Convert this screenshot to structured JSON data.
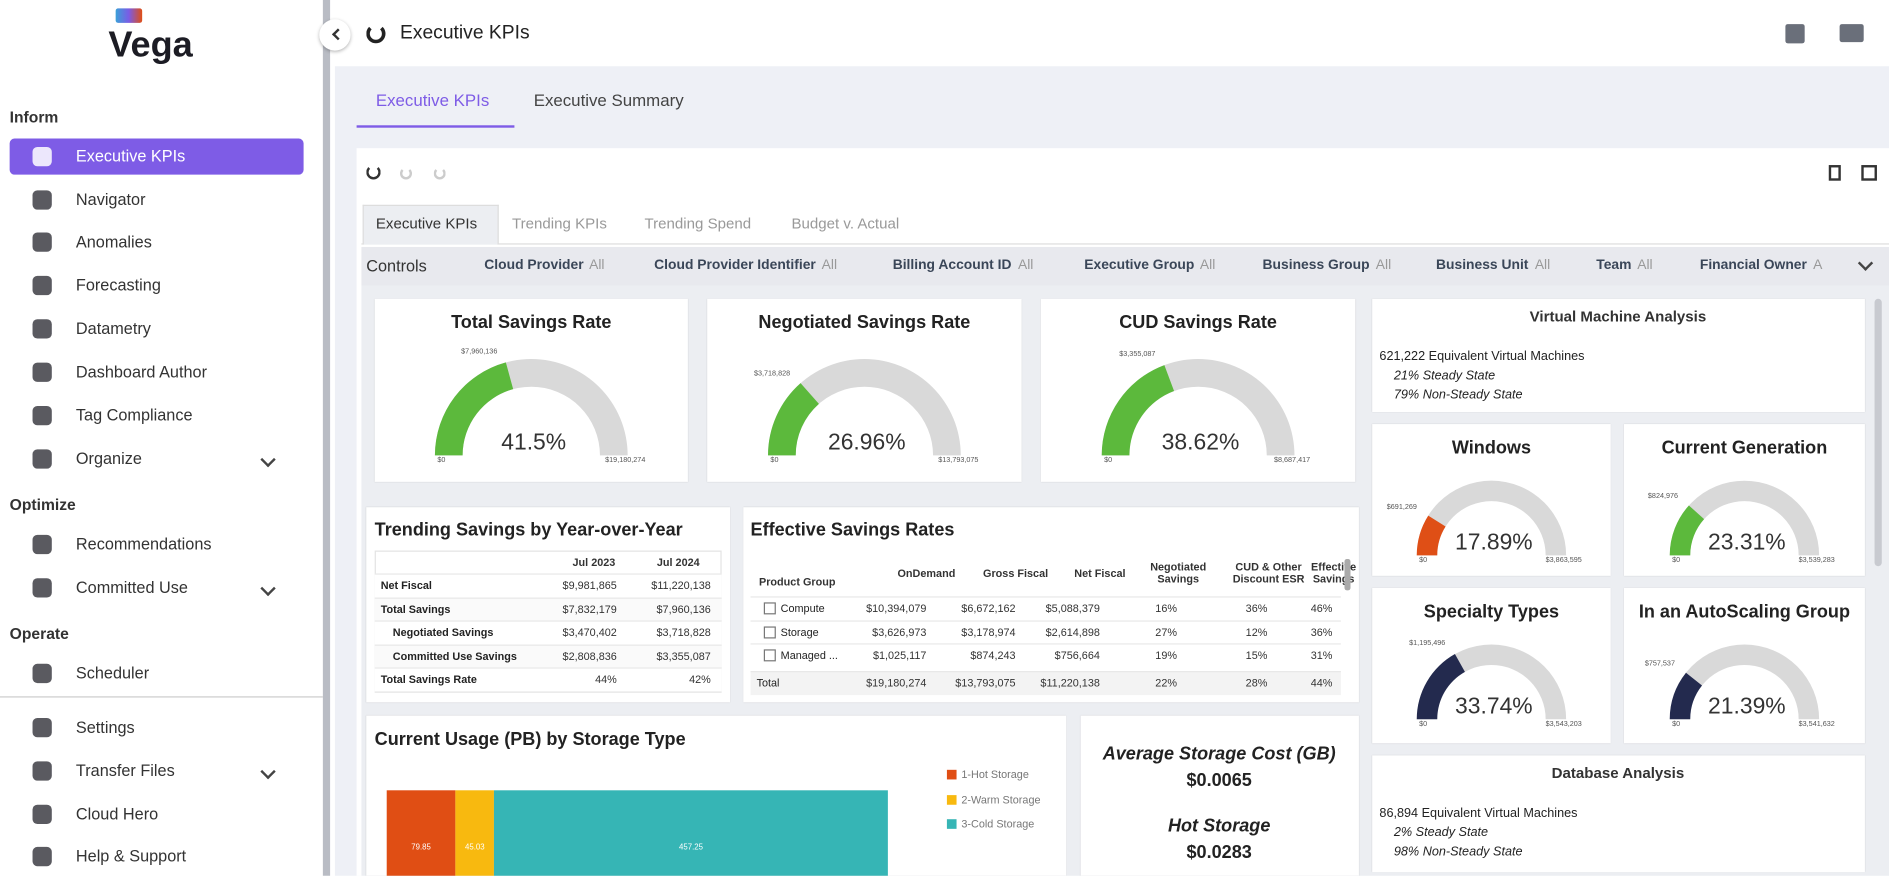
{
  "sidebar": {
    "logo": "Vega",
    "sections": [
      {
        "title": "Inform",
        "items": [
          "Executive KPIs",
          "Navigator",
          "Anomalies",
          "Forecasting",
          "Datametry",
          "Dashboard Author",
          "Tag Compliance",
          "Organize"
        ]
      },
      {
        "title": "Optimize",
        "items": [
          "Recommendations",
          "Committed Use"
        ]
      },
      {
        "title": "Operate",
        "items": [
          "Scheduler"
        ]
      }
    ],
    "footer": [
      "Settings",
      "Transfer Files",
      "Cloud Hero",
      "Help & Support"
    ]
  },
  "header": {
    "title": "Executive KPIs"
  },
  "tabs": [
    "Executive KPIs",
    "Executive Summary"
  ],
  "subtabs": [
    "Executive KPIs",
    "Trending KPIs",
    "Trending Spend",
    "Budget v. Actual"
  ],
  "controls": {
    "label": "Controls",
    "filters": [
      {
        "name": "Cloud Provider",
        "value": "All"
      },
      {
        "name": "Cloud Provider Identifier",
        "value": "All"
      },
      {
        "name": "Billing Account ID",
        "value": "All"
      },
      {
        "name": "Executive Group",
        "value": "All"
      },
      {
        "name": "Business Group",
        "value": "All"
      },
      {
        "name": "Business Unit",
        "value": "All"
      },
      {
        "name": "Team",
        "value": "All"
      },
      {
        "name": "Financial Owner",
        "value": "A"
      }
    ]
  },
  "gauges": [
    {
      "title": "Total Savings Rate",
      "value": 41.5,
      "value_label": "41.5%",
      "top_label": "$7,960,136",
      "min_label": "$0",
      "max_label": "$19,180,274",
      "color": "#5cb93c"
    },
    {
      "title": "Negotiated Savings Rate",
      "value": 26.96,
      "value_label": "26.96%",
      "top_label": "$3,718,828",
      "min_label": "$0",
      "max_label": "$13,793,075",
      "color": "#5cb93c"
    },
    {
      "title": "CUD Savings Rate",
      "value": 38.62,
      "value_label": "38.62%",
      "top_label": "$3,355,087",
      "min_label": "$0",
      "max_label": "$8,687,417",
      "color": "#5cb93c"
    },
    {
      "title": "Windows",
      "value": 17.89,
      "value_label": "17.89%",
      "top_label": "$691,269",
      "min_label": "$0",
      "max_label": "$3,863,595",
      "color": "#df4f16"
    },
    {
      "title": "Current Generation",
      "value": 23.31,
      "value_label": "23.31%",
      "top_label": "$824,976",
      "min_label": "$0",
      "max_label": "$3,539,283",
      "color": "#5cb93c"
    },
    {
      "title": "Specialty Types",
      "value": 33.74,
      "value_label": "33.74%",
      "top_label": "$1,195,496",
      "min_label": "$0",
      "max_label": "$3,543,203",
      "color": "#232a4e"
    },
    {
      "title": "In an AutoScaling Group",
      "value": 21.39,
      "value_label": "21.39%",
      "top_label": "$757,537",
      "min_label": "$0",
      "max_label": "$3,541,632",
      "color": "#232a4e"
    }
  ],
  "vm_analysis": {
    "title": "Virtual Machine Analysis",
    "lines": [
      "621,222 Equivalent Virtual Machines",
      "21% Steady State",
      "79% Non-Steady State"
    ]
  },
  "db_analysis": {
    "title": "Database Analysis",
    "lines": [
      "86,894 Equivalent Virtual Machines",
      "2% Steady State",
      "98% Non-Steady State"
    ]
  },
  "trending_table": {
    "title": "Trending Savings by Year-over-Year",
    "headers": [
      "Jul 2023",
      "Jul 2024"
    ],
    "rows": [
      [
        "Net Fiscal",
        "$9,981,865",
        "$11,220,138"
      ],
      [
        "Total Savings",
        "$7,832,179",
        "$7,960,136"
      ],
      [
        "Negotiated Savings",
        "$3,470,402",
        "$3,718,828"
      ],
      [
        "Committed Use Savings",
        "$2,808,836",
        "$3,355,087"
      ],
      [
        "Total Savings Rate",
        "44%",
        "42%"
      ]
    ]
  },
  "esr_table": {
    "title": "Effective Savings Rates",
    "headers": [
      "Product Group",
      "OnDemand",
      "Gross Fiscal",
      "Net Fiscal",
      "Negotiated Savings",
      "CUD & Other Discount ESR",
      "Effective Savings"
    ],
    "rows": [
      [
        "Compute",
        "$10,394,079",
        "$6,672,162",
        "$5,088,379",
        "16%",
        "36%",
        "46%"
      ],
      [
        "Storage",
        "$3,626,973",
        "$3,178,974",
        "$2,614,898",
        "27%",
        "12%",
        "36%"
      ],
      [
        "Managed ...",
        "$1,025,117",
        "$874,243",
        "$756,664",
        "19%",
        "15%",
        "31%"
      ],
      [
        "Total",
        "$19,180,274",
        "$13,793,075",
        "$11,220,138",
        "22%",
        "28%",
        "44%"
      ]
    ]
  },
  "chart_data": {
    "type": "bar",
    "orientation": "horizontal",
    "stacked": true,
    "title": "Current Usage (PB) by Storage Type",
    "series": [
      {
        "name": "1-Hot Storage",
        "color": "#e04e14",
        "values": [
          79.85
        ]
      },
      {
        "name": "2-Warm Storage",
        "color": "#f8b90f",
        "values": [
          45.03
        ]
      },
      {
        "name": "3-Cold Storage",
        "color": "#36b5b5",
        "values": [
          457.25
        ]
      }
    ]
  },
  "storage_cost": {
    "items": [
      {
        "label": "Average Storage Cost (GB)",
        "value": "$0.0065"
      },
      {
        "label": "Hot Storage",
        "value": "$0.0283"
      }
    ]
  }
}
